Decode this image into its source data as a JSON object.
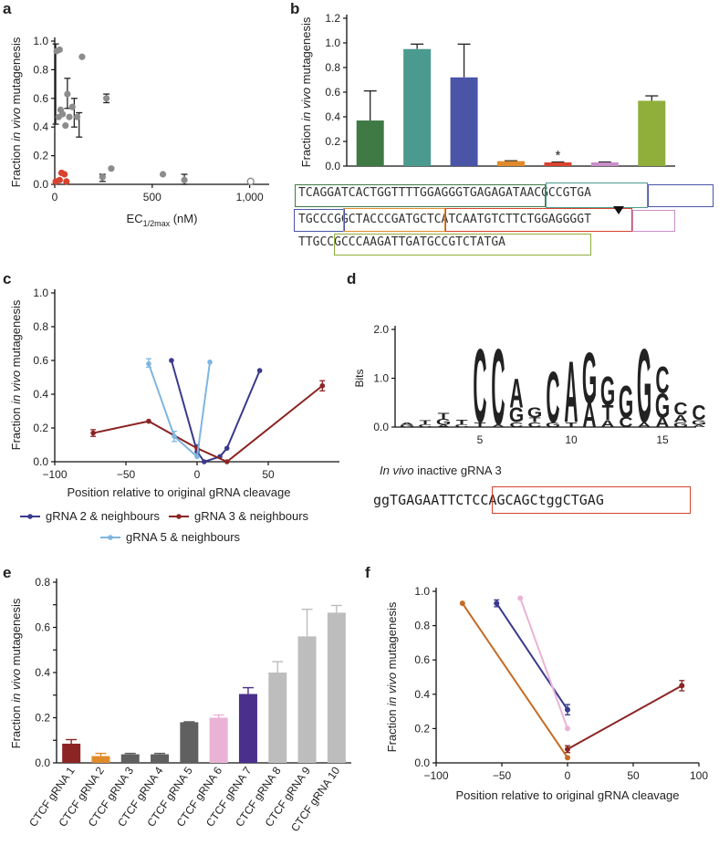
{
  "panels": {
    "a": "a",
    "b": "b",
    "c": "c",
    "d": "d",
    "e": "e",
    "f": "f"
  },
  "colors": {
    "grey": "#8c8c8c",
    "red": "#d8432e",
    "dark_green": "#3f7a45",
    "teal": "#4a9a8f",
    "blue": "#4a55a8",
    "orange": "#e08a2b",
    "pink": "#c98fc8",
    "lime": "#8fae3a",
    "navy": "#3a3a8c",
    "maroon": "#8c2424",
    "light_blue": "#7fb6e0",
    "dark_grey": "#606060",
    "light_grey": "#bdbdbd",
    "light_pink": "#eab3d6",
    "purple": "#4a2f8c",
    "burnt_orange": "#c66b24"
  },
  "chart_data": [
    {
      "id": "a",
      "type": "scatter",
      "xlabel_main": "EC",
      "xlabel_sub": "1/2max",
      "xlabel_unit": " (nM)",
      "ylabel_pre": "Fraction ",
      "ylabel_italic": "in vivo",
      "ylabel_post": " mutagenesis",
      "xlim": [
        0,
        1100
      ],
      "ylim": [
        0,
        1.0
      ],
      "xticks": [
        0,
        500,
        1000
      ],
      "xtick_labels": [
        "0",
        "500",
        "1,000"
      ],
      "yticks": [
        0,
        0.2,
        0.4,
        0.6,
        0.8,
        1.0
      ],
      "ytick_labels": [
        "0.0",
        "0.2",
        "0.4",
        "0.6",
        "0.8",
        "1.0"
      ],
      "grey_points": [
        {
          "x": 10,
          "y": 0.93
        },
        {
          "x": 25,
          "y": 0.94
        },
        {
          "x": 30,
          "y": 0.52
        },
        {
          "x": 20,
          "y": 0.47
        },
        {
          "x": 40,
          "y": 0.49
        },
        {
          "x": 55,
          "y": 0.41
        },
        {
          "x": 65,
          "y": 0.63
        },
        {
          "x": 75,
          "y": 0.47
        },
        {
          "x": 90,
          "y": 0.54
        },
        {
          "x": 115,
          "y": 0.47
        },
        {
          "x": 140,
          "y": 0.89
        },
        {
          "x": 245,
          "y": 0.05
        },
        {
          "x": 265,
          "y": 0.6
        },
        {
          "x": 290,
          "y": 0.11
        },
        {
          "x": 555,
          "y": 0.07
        },
        {
          "x": 665,
          "y": 0.03
        }
      ],
      "open_points": [
        {
          "x": 1005,
          "y": 0.02
        }
      ],
      "red_points": [
        {
          "x": 5,
          "y": 0.02
        },
        {
          "x": 25,
          "y": 0.03
        },
        {
          "x": 35,
          "y": 0.08
        },
        {
          "x": 50,
          "y": 0.07
        },
        {
          "x": 60,
          "y": 0.02
        }
      ],
      "errorbars": [
        {
          "x": 5,
          "lo": 0.42,
          "hi": 0.98
        },
        {
          "x": 65,
          "lo": 0.53,
          "hi": 0.74
        },
        {
          "x": 100,
          "lo": 0.4,
          "hi": 0.6
        },
        {
          "x": 125,
          "lo": 0.33,
          "hi": 0.5
        },
        {
          "x": 245,
          "lo": 0.02,
          "hi": 0.07
        },
        {
          "x": 265,
          "lo": 0.57,
          "hi": 0.63
        },
        {
          "x": 665,
          "lo": 0.0,
          "hi": 0.07
        }
      ]
    },
    {
      "id": "b",
      "type": "bar",
      "ylabel_pre": "Fraction ",
      "ylabel_italic": "in vivo",
      "ylabel_post": " mutagenesis",
      "ylim": [
        0,
        1.2
      ],
      "yticks": [
        0,
        0.2,
        0.4,
        0.6,
        0.8,
        1.0,
        1.2
      ],
      "ytick_labels": [
        "0.0",
        "0.2",
        "0.4",
        "0.6",
        "0.8",
        "1.0",
        "1.2"
      ],
      "values": [
        0.37,
        0.95,
        0.72,
        0.04,
        0.03,
        0.03,
        0.53
      ],
      "errors": [
        0.24,
        0.04,
        0.27,
        0.003,
        0.003,
        0.003,
        0.04
      ],
      "colors": [
        "#3f7a45",
        "#4a9a8f",
        "#4a55a8",
        "#e08a2b",
        "#d8432e",
        "#c98fc8",
        "#8fae3a"
      ],
      "annotation": "*"
    },
    {
      "id": "c",
      "type": "line",
      "xlabel": "Position relative to original gRNA cleavage",
      "ylabel_pre": "Fraction ",
      "ylabel_italic": "in vivo",
      "ylabel_post": " mutagenesis",
      "xlim": [
        -100,
        100
      ],
      "ylim": [
        0,
        1.0
      ],
      "xticks": [
        -100,
        -50,
        0,
        50
      ],
      "xtick_labels": [
        "−100",
        "−50",
        "0",
        "50"
      ],
      "yticks": [
        0,
        0.2,
        0.4,
        0.6,
        0.8,
        1.0
      ],
      "ytick_labels": [
        "0.0",
        "0.2",
        "0.4",
        "0.6",
        "0.8",
        "1.0"
      ],
      "series": [
        {
          "name": "gRNA 2 & neighbours",
          "color": "#3a3a8c",
          "points": [
            {
              "x": -18,
              "y": 0.6
            },
            {
              "x": 0,
              "y": 0.06
            },
            {
              "x": 5,
              "y": 0.0
            },
            {
              "x": 16,
              "y": 0.03
            },
            {
              "x": 21,
              "y": 0.08
            },
            {
              "x": 44,
              "y": 0.54
            }
          ]
        },
        {
          "name": "gRNA 3 & neighbours",
          "color": "#8c2424",
          "points": [
            {
              "x": -73,
              "y": 0.17
            },
            {
              "x": -34,
              "y": 0.24
            },
            {
              "x": 0,
              "y": 0.08
            },
            {
              "x": 21,
              "y": 0.0
            },
            {
              "x": 88,
              "y": 0.45
            }
          ]
        },
        {
          "name": "gRNA 5 & neighbours",
          "color": "#7fb6e0",
          "points": [
            {
              "x": -34,
              "y": 0.58
            },
            {
              "x": -16,
              "y": 0.15
            },
            {
              "x": 0,
              "y": 0.03
            },
            {
              "x": 9,
              "y": 0.59
            }
          ]
        }
      ],
      "errorbars": [
        {
          "x": -34,
          "lo": 0.56,
          "hi": 0.61,
          "color": "#7fb6e0"
        },
        {
          "x": -16,
          "lo": 0.12,
          "hi": 0.18,
          "color": "#7fb6e0"
        },
        {
          "x": 0,
          "lo": 0.04,
          "hi": 0.1,
          "color": "#3a3a8c"
        },
        {
          "x": -73,
          "lo": 0.15,
          "hi": 0.19,
          "color": "#8c2424"
        },
        {
          "x": 88,
          "lo": 0.42,
          "hi": 0.48,
          "color": "#8c2424"
        }
      ]
    },
    {
      "id": "d",
      "type": "sequence-logo",
      "ylabel": "Bits",
      "ylim": [
        0,
        2.0
      ],
      "yticks": [
        0,
        1.0,
        2.0
      ],
      "ytick_labels": [
        "0.0",
        "1.0",
        "2.0"
      ],
      "xticks": [
        5,
        10,
        15
      ],
      "xtick_labels": [
        "5",
        "10",
        "15"
      ],
      "columns": [
        {
          "pos": 1,
          "letters": [
            {
              "l": "G",
              "h": 0.05
            },
            {
              "l": "A",
              "h": 0.05
            }
          ]
        },
        {
          "pos": 2,
          "letters": [
            {
              "l": "T",
              "h": 0.08
            },
            {
              "l": "C",
              "h": 0.06
            }
          ]
        },
        {
          "pos": 3,
          "letters": [
            {
              "l": "G",
              "h": 0.12
            },
            {
              "l": "T",
              "h": 0.12
            },
            {
              "l": "A",
              "h": 0.05
            }
          ]
        },
        {
          "pos": 4,
          "letters": [
            {
              "l": "T",
              "h": 0.1
            },
            {
              "l": "C",
              "h": 0.06
            }
          ]
        },
        {
          "pos": 5,
          "letters": [
            {
              "l": "C",
              "h": 1.5
            },
            {
              "l": "T",
              "h": 0.1
            }
          ]
        },
        {
          "pos": 6,
          "letters": [
            {
              "l": "C",
              "h": 1.55
            },
            {
              "l": "A",
              "h": 0.06
            }
          ]
        },
        {
          "pos": 7,
          "letters": [
            {
              "l": "A",
              "h": 0.6
            },
            {
              "l": "G",
              "h": 0.3
            },
            {
              "l": "C",
              "h": 0.1
            }
          ]
        },
        {
          "pos": 8,
          "letters": [
            {
              "l": "G",
              "h": 0.2
            },
            {
              "l": "C",
              "h": 0.1
            },
            {
              "l": "T",
              "h": 0.1
            }
          ]
        },
        {
          "pos": 9,
          "letters": [
            {
              "l": "C",
              "h": 1.05
            },
            {
              "l": "G",
              "h": 0.1
            }
          ]
        },
        {
          "pos": 10,
          "letters": [
            {
              "l": "A",
              "h": 1.25
            },
            {
              "l": "T",
              "h": 0.1
            }
          ]
        },
        {
          "pos": 11,
          "letters": [
            {
              "l": "G",
              "h": 1.05
            },
            {
              "l": "A",
              "h": 0.5
            }
          ]
        },
        {
          "pos": 12,
          "letters": [
            {
              "l": "G",
              "h": 0.6
            },
            {
              "l": "T",
              "h": 0.3
            },
            {
              "l": "A",
              "h": 0.15
            }
          ]
        },
        {
          "pos": 13,
          "letters": [
            {
              "l": "G",
              "h": 0.65
            },
            {
              "l": "C",
              "h": 0.2
            }
          ]
        },
        {
          "pos": 14,
          "letters": [
            {
              "l": "G",
              "h": 1.5
            },
            {
              "l": "A",
              "h": 0.1
            }
          ]
        },
        {
          "pos": 15,
          "letters": [
            {
              "l": "G",
              "h": 0.5
            },
            {
              "l": "C",
              "h": 0.55
            },
            {
              "l": "A",
              "h": 0.2
            }
          ]
        },
        {
          "pos": 16,
          "letters": [
            {
              "l": "C",
              "h": 0.25
            },
            {
              "l": "A",
              "h": 0.15
            },
            {
              "l": "G",
              "h": 0.1
            }
          ]
        },
        {
          "pos": 17,
          "letters": [
            {
              "l": "C",
              "h": 0.3
            },
            {
              "l": "G",
              "h": 0.1
            },
            {
              "l": "A",
              "h": 0.05
            }
          ]
        }
      ],
      "caption_italic": "In vivo",
      "caption_rest": " inactive gRNA 3",
      "motif_sequence": "ggTGAGAATTCTCCAGCAGCtggCTGAG"
    },
    {
      "id": "e",
      "type": "bar",
      "ylabel_pre": "Fraction ",
      "ylabel_italic": "in vivo",
      "ylabel_post": " mutagenesis",
      "ylim": [
        0,
        0.8
      ],
      "yticks": [
        0,
        0.1,
        0.2,
        0.3,
        0.4,
        0.5,
        0.6,
        0.7,
        0.8
      ],
      "ytick_labels": [
        "0.0",
        "",
        "0.2",
        "",
        "0.4",
        "",
        "0.6",
        "",
        "0.8"
      ],
      "categories": [
        "CTCF gRNA 1",
        "CTCF gRNA 2",
        "CTCF gRNA 3",
        "CTCF gRNA 4",
        "CTCF gRNA 5",
        "CTCF gRNA 6",
        "CTCF gRNA 7",
        "CTCF gRNA 8",
        "CTCF gRNA 9",
        "CTCF gRNA 10"
      ],
      "values": [
        0.085,
        0.03,
        0.038,
        0.038,
        0.18,
        0.2,
        0.305,
        0.4,
        0.56,
        0.665
      ],
      "errors": [
        0.018,
        0.012,
        0.004,
        0.004,
        0.002,
        0.012,
        0.028,
        0.048,
        0.12,
        0.032
      ],
      "colors": [
        "#8c2424",
        "#e08a2b",
        "#606060",
        "#606060",
        "#606060",
        "#eab3d6",
        "#4a2f8c",
        "#bdbdbd",
        "#bdbdbd",
        "#bdbdbd"
      ]
    },
    {
      "id": "f",
      "type": "line",
      "xlabel": "Position relative to original gRNA cleavage",
      "ylabel_pre": "Fraction ",
      "ylabel_italic": "in vivo",
      "ylabel_post": " mutagenesis",
      "xlim": [
        -100,
        100
      ],
      "ylim": [
        0,
        1.0
      ],
      "xticks": [
        -100,
        -50,
        0,
        50,
        100
      ],
      "xtick_labels": [
        "−100",
        "−50",
        "0",
        "50",
        "100"
      ],
      "yticks": [
        0,
        0.2,
        0.4,
        0.6,
        0.8,
        1.0
      ],
      "ytick_labels": [
        "0.0",
        "0.2",
        "0.4",
        "0.6",
        "0.8",
        "1.0"
      ],
      "series": [
        {
          "name": "orange",
          "color": "#c66b24",
          "points": [
            {
              "x": -80,
              "y": 0.93
            },
            {
              "x": 0,
              "y": 0.03
            }
          ]
        },
        {
          "name": "navy",
          "color": "#3a3a8c",
          "points": [
            {
              "x": -54,
              "y": 0.93
            },
            {
              "x": 0,
              "y": 0.31
            }
          ]
        },
        {
          "name": "pink",
          "color": "#eab3d6",
          "points": [
            {
              "x": -36,
              "y": 0.96
            },
            {
              "x": 0,
              "y": 0.2
            }
          ]
        },
        {
          "name": "maroon",
          "color": "#8c2424",
          "points": [
            {
              "x": 0,
              "y": 0.08
            },
            {
              "x": 87,
              "y": 0.45
            }
          ]
        }
      ],
      "errorbars": [
        {
          "x": -54,
          "lo": 0.91,
          "hi": 0.95,
          "color": "#3a3a8c"
        },
        {
          "x": 0,
          "lo": 0.28,
          "hi": 0.34,
          "color": "#3a3a8c"
        },
        {
          "x": 0,
          "lo": 0.06,
          "hi": 0.1,
          "color": "#8c2424"
        },
        {
          "x": 87,
          "lo": 0.42,
          "hi": 0.48,
          "color": "#8c2424"
        }
      ]
    }
  ],
  "sequence_b": {
    "line1": "TCAGGATCACTGGTTTTGGAGGGTGAGAGATAACGCCGTGA",
    "line2": "TGCCCGGCTACCCGATGCTCATCAATGTCTTCTGGAGGGGT",
    "line3": "TTGCCGCCCAAGATTGATGCCGTCTATGA"
  },
  "legend_c": [
    "gRNA 2 & neighbours",
    "gRNA 3 & neighbours",
    "gRNA 5 & neighbours"
  ]
}
